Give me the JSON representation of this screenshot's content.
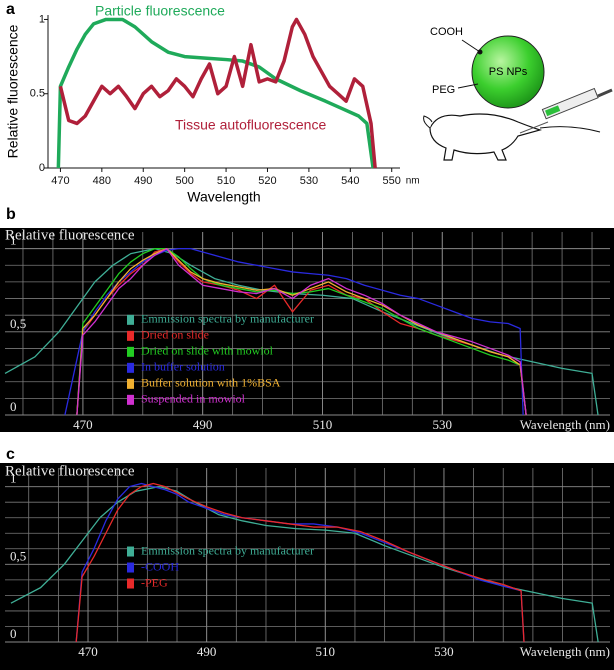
{
  "panels": [
    "a",
    "b",
    "c"
  ],
  "diagram": {
    "cooh": "COOH",
    "core": "PS NPs",
    "peg": "PEG"
  },
  "chart_data": [
    {
      "type": "line",
      "legend": "inline",
      "grid": false,
      "y_label": "Relative fluorescence",
      "x_label": "Wavelength",
      "x_unit": "nm",
      "xlim": [
        467,
        552
      ],
      "xticks": [
        470,
        480,
        490,
        500,
        510,
        520,
        530,
        540,
        550
      ],
      "ylim": [
        0,
        1.03
      ],
      "yticks": [
        0,
        0.5,
        1
      ],
      "series": [
        {
          "name": "Particle fluorescence",
          "color": "#1faa5a",
          "x": [
            469.5,
            470,
            472,
            474,
            476,
            478,
            481,
            485,
            488,
            492,
            496,
            500,
            505,
            510,
            514,
            518,
            522,
            528,
            534,
            538,
            542,
            544,
            545.5
          ],
          "values": [
            0,
            0.55,
            0.68,
            0.8,
            0.9,
            0.97,
            1,
            1,
            0.95,
            0.85,
            0.78,
            0.75,
            0.74,
            0.73,
            0.72,
            0.68,
            0.6,
            0.52,
            0.45,
            0.4,
            0.35,
            0.3,
            0
          ]
        },
        {
          "name": "Tissue autofluorescence",
          "color": "#b0203a",
          "x": [
            470,
            472,
            474,
            476,
            478,
            480,
            482,
            484,
            486,
            488,
            490,
            492,
            494,
            496,
            498,
            500,
            502,
            504,
            506,
            508,
            510,
            512,
            514,
            516,
            518,
            520,
            522,
            524,
            526,
            527,
            529,
            531,
            533,
            535,
            537,
            539,
            541,
            543,
            545,
            546
          ],
          "values": [
            0.55,
            0.32,
            0.3,
            0.35,
            0.45,
            0.55,
            0.5,
            0.55,
            0.48,
            0.4,
            0.5,
            0.55,
            0.48,
            0.52,
            0.6,
            0.55,
            0.48,
            0.6,
            0.7,
            0.5,
            0.55,
            0.75,
            0.55,
            0.83,
            0.58,
            0.6,
            0.58,
            0.72,
            0.95,
            1.0,
            0.9,
            0.75,
            0.65,
            0.55,
            0.5,
            0.45,
            0.6,
            0.55,
            0.3,
            0
          ]
        }
      ]
    },
    {
      "type": "line",
      "legend": "left",
      "grid": true,
      "y_label": "Relative fluorescence",
      "x_label": "Wavelength (nm)",
      "xlim": [
        457,
        558
      ],
      "xticks": [
        470,
        490,
        510,
        530
      ],
      "grid_x": [
        460,
        465,
        470,
        475,
        480,
        485,
        490,
        495,
        500,
        505,
        510,
        515,
        520,
        525,
        530,
        535,
        540,
        545,
        550,
        555
      ],
      "ylim": [
        0,
        1.1
      ],
      "yticks": [
        0,
        {
          "value": 0.5,
          "label": "0,5"
        },
        1
      ],
      "grid_y": [
        0.1,
        0.2,
        0.3,
        0.4,
        0.6,
        0.7,
        0.8,
        0.9
      ],
      "series": [
        {
          "name": "Emmission spectra by manufacturer",
          "color": "#3fae96",
          "x": [
            457,
            462,
            466,
            469,
            472,
            475,
            478,
            482,
            485,
            488,
            492,
            496,
            500,
            505,
            510,
            515,
            520,
            525,
            530,
            535,
            540,
            545,
            550,
            555,
            556
          ],
          "values": [
            0.25,
            0.35,
            0.5,
            0.65,
            0.8,
            0.9,
            0.97,
            1,
            0.97,
            0.9,
            0.82,
            0.78,
            0.75,
            0.73,
            0.72,
            0.7,
            0.62,
            0.55,
            0.48,
            0.42,
            0.36,
            0.32,
            0.28,
            0.25,
            0
          ]
        },
        {
          "name": "Dried on slide",
          "color": "#e82a2a",
          "x": [
            469,
            470,
            472,
            474,
            476,
            478,
            480,
            482,
            484,
            486,
            488,
            490,
            493,
            496,
            499,
            502,
            505,
            508,
            511,
            514,
            517,
            520,
            523,
            526,
            529,
            532,
            535,
            538,
            541,
            543,
            544
          ],
          "values": [
            0,
            0.5,
            0.6,
            0.7,
            0.78,
            0.85,
            0.9,
            0.98,
            1,
            0.92,
            0.85,
            0.8,
            0.78,
            0.75,
            0.7,
            0.78,
            0.62,
            0.75,
            0.78,
            0.72,
            0.7,
            0.62,
            0.55,
            0.52,
            0.48,
            0.45,
            0.42,
            0.38,
            0.35,
            0.3,
            0
          ]
        },
        {
          "name": "Dried on slide with mowiol",
          "color": "#22cc22",
          "x": [
            469,
            470,
            472,
            474,
            476,
            478,
            480,
            482,
            484,
            486,
            488,
            490,
            493,
            496,
            499,
            502,
            505,
            508,
            511,
            514,
            517,
            520,
            523,
            526,
            529,
            532,
            535,
            538,
            541,
            543,
            544
          ],
          "values": [
            0,
            0.55,
            0.65,
            0.75,
            0.85,
            0.92,
            0.97,
            1,
            1,
            0.95,
            0.88,
            0.82,
            0.78,
            0.76,
            0.74,
            0.75,
            0.73,
            0.74,
            0.76,
            0.72,
            0.68,
            0.64,
            0.58,
            0.52,
            0.48,
            0.44,
            0.4,
            0.36,
            0.33,
            0.3,
            0
          ]
        },
        {
          "name": "In buffer solution",
          "color": "#2a2ae0",
          "x": [
            467,
            470,
            472,
            474,
            476,
            478,
            480,
            482,
            484,
            486,
            488,
            490,
            493,
            496,
            499,
            502,
            505,
            508,
            511,
            514,
            517,
            520,
            523,
            526,
            529,
            532,
            535,
            538,
            541,
            543,
            543.5
          ],
          "values": [
            0,
            0.5,
            0.62,
            0.72,
            0.8,
            0.86,
            0.92,
            0.96,
            0.99,
            1,
            1,
            0.98,
            0.95,
            0.92,
            0.9,
            0.88,
            0.86,
            0.85,
            0.84,
            0.82,
            0.78,
            0.75,
            0.72,
            0.7,
            0.66,
            0.62,
            0.58,
            0.56,
            0.55,
            0.52,
            0
          ]
        },
        {
          "name": "Buffer solution with 1%BSA",
          "color": "#f0b030",
          "x": [
            469,
            470,
            472,
            474,
            476,
            478,
            480,
            482,
            484,
            486,
            488,
            490,
            493,
            496,
            499,
            502,
            505,
            508,
            511,
            514,
            517,
            520,
            523,
            526,
            529,
            532,
            535,
            538,
            541,
            543,
            544
          ],
          "values": [
            0,
            0.52,
            0.6,
            0.7,
            0.8,
            0.88,
            0.93,
            0.97,
            1,
            0.93,
            0.86,
            0.82,
            0.79,
            0.77,
            0.75,
            0.76,
            0.72,
            0.76,
            0.8,
            0.74,
            0.7,
            0.66,
            0.6,
            0.54,
            0.5,
            0.46,
            0.42,
            0.38,
            0.35,
            0.3,
            0
          ]
        },
        {
          "name": "Suspended in mowiol",
          "color": "#d030d0",
          "x": [
            469,
            470,
            472,
            474,
            476,
            478,
            480,
            482,
            484,
            486,
            488,
            490,
            493,
            496,
            499,
            502,
            505,
            508,
            511,
            514,
            517,
            520,
            523,
            526,
            529,
            532,
            535,
            538,
            541,
            543,
            544
          ],
          "values": [
            0,
            0.48,
            0.56,
            0.66,
            0.76,
            0.82,
            0.9,
            0.96,
            1,
            0.9,
            0.84,
            0.78,
            0.76,
            0.74,
            0.73,
            0.76,
            0.7,
            0.78,
            0.82,
            0.76,
            0.72,
            0.67,
            0.6,
            0.55,
            0.5,
            0.47,
            0.44,
            0.4,
            0.36,
            0.32,
            0
          ]
        }
      ]
    },
    {
      "type": "line",
      "legend": "left",
      "grid": true,
      "y_label": "Relative fluorescence",
      "x_label": "Wavelength (nm)",
      "xlim": [
        456,
        558
      ],
      "xticks": [
        470,
        490,
        510,
        530
      ],
      "grid_x": [
        460,
        465,
        470,
        475,
        480,
        485,
        490,
        495,
        500,
        505,
        510,
        515,
        520,
        525,
        530,
        535,
        540,
        545,
        550,
        555
      ],
      "ylim": [
        0,
        1.12
      ],
      "yticks": [
        0,
        {
          "value": 0.5,
          "label": "0,5"
        },
        1
      ],
      "grid_y": [
        0.1,
        0.2,
        0.3,
        0.4,
        0.6,
        0.7,
        0.8,
        0.9
      ],
      "series": [
        {
          "name": "Emmission spectra by manufacturer",
          "color": "#3fae96",
          "x": [
            457,
            462,
            466,
            469,
            472,
            475,
            478,
            482,
            485,
            488,
            492,
            496,
            500,
            505,
            510,
            515,
            520,
            525,
            530,
            535,
            540,
            545,
            550,
            555,
            556
          ],
          "values": [
            0.25,
            0.35,
            0.5,
            0.65,
            0.8,
            0.9,
            0.97,
            1,
            0.97,
            0.9,
            0.82,
            0.78,
            0.75,
            0.73,
            0.72,
            0.7,
            0.62,
            0.55,
            0.48,
            0.42,
            0.36,
            0.32,
            0.28,
            0.25,
            0
          ]
        },
        {
          "name": "-COOH",
          "color": "#2a2ae0",
          "x": [
            468,
            469,
            471,
            473,
            475,
            477,
            479,
            481,
            483,
            485,
            487,
            490,
            493,
            496,
            500,
            504,
            508,
            512,
            516,
            520,
            524,
            528,
            532,
            536,
            540,
            543,
            543.5
          ],
          "values": [
            0,
            0.45,
            0.6,
            0.78,
            0.92,
            1,
            1.02,
            1,
            0.98,
            0.95,
            0.9,
            0.86,
            0.82,
            0.8,
            0.78,
            0.76,
            0.76,
            0.74,
            0.7,
            0.64,
            0.58,
            0.52,
            0.46,
            0.4,
            0.36,
            0.33,
            0
          ]
        },
        {
          "name": "-PEG",
          "color": "#e82a2a",
          "x": [
            468,
            469,
            471,
            473,
            475,
            477,
            479,
            481,
            483,
            485,
            487,
            490,
            493,
            496,
            500,
            504,
            508,
            512,
            516,
            520,
            524,
            528,
            532,
            536,
            540,
            543,
            543.5
          ],
          "values": [
            0,
            0.42,
            0.55,
            0.7,
            0.85,
            0.95,
            1,
            1.02,
            1,
            0.96,
            0.92,
            0.87,
            0.83,
            0.8,
            0.78,
            0.76,
            0.74,
            0.74,
            0.71,
            0.65,
            0.58,
            0.52,
            0.46,
            0.41,
            0.37,
            0.33,
            0
          ]
        }
      ]
    }
  ]
}
